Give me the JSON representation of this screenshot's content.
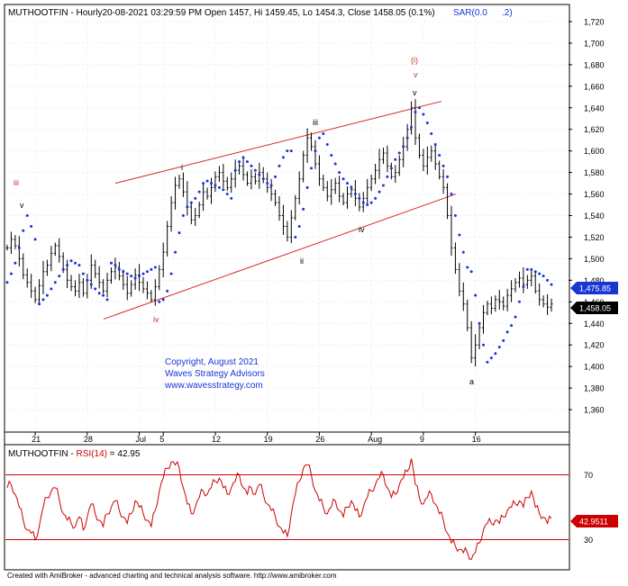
{
  "chart_data": [
    {
      "type": "ohlc",
      "title": "MUTHOOTFIN - Hourly20-08-2021 03:29:59 PM Open 1457, Hi 1459.45, Lo 1454.3, Close 1458.05 (0.1%)",
      "sar_label": "SAR(0.0",
      "sar_label2": ".2)",
      "symbol": "MUTHOOTFIN",
      "interval": "Hourly",
      "timestamp": "20-08-2021 03:29:59 PM",
      "open": 1457,
      "high": 1459.45,
      "low": 1454.3,
      "close": 1458.05,
      "change_pct": "0.1%",
      "ylim": [
        1340,
        1735
      ],
      "yticks": [
        1360,
        1380,
        1400,
        1420,
        1440,
        1460,
        1480,
        1500,
        1520,
        1540,
        1560,
        1580,
        1600,
        1620,
        1640,
        1660,
        1680,
        1700,
        1720
      ],
      "ytick_labels": [
        "1,360",
        "1,380",
        "1,400",
        "1,420",
        "1,440",
        "1,460",
        "1,480",
        "1,500",
        "1,520",
        "1,540",
        "1,560",
        "1,580",
        "1,600",
        "1,620",
        "1,640",
        "1,660",
        "1,680",
        "1,700",
        "1,720"
      ],
      "xtick_labels": [
        "21",
        "28",
        "Jul",
        "5",
        "12",
        "19",
        "26",
        "Aug",
        "9",
        "16"
      ],
      "price_labels": [
        {
          "text": "1,475.85",
          "color": "#1a35d6"
        },
        {
          "text": "1,458.05",
          "color": "#000000"
        }
      ],
      "series": [
        {
          "name": "Close",
          "color": "#000000",
          "values": [
            1510,
            1518,
            1512,
            1500,
            1485,
            1478,
            1470,
            1462,
            1475,
            1488,
            1494,
            1505,
            1512,
            1502,
            1490,
            1480,
            1474,
            1470,
            1478,
            1468,
            1480,
            1494,
            1486,
            1478,
            1470,
            1480,
            1488,
            1492,
            1484,
            1476,
            1468,
            1476,
            1485,
            1478,
            1472,
            1468,
            1462,
            1474,
            1490,
            1506,
            1530,
            1552,
            1568,
            1574,
            1562,
            1548,
            1536,
            1540,
            1550,
            1562,
            1558,
            1566,
            1576,
            1580,
            1572,
            1566,
            1574,
            1582,
            1586,
            1578,
            1570,
            1576,
            1572,
            1580,
            1574,
            1566,
            1560,
            1552,
            1540,
            1530,
            1520,
            1538,
            1556,
            1574,
            1596,
            1612,
            1604,
            1588,
            1574,
            1566,
            1558,
            1564,
            1570,
            1558,
            1552,
            1560,
            1564,
            1556,
            1548,
            1556,
            1566,
            1574,
            1582,
            1592,
            1598,
            1586,
            1576,
            1580,
            1592,
            1604,
            1620,
            1640,
            1612,
            1596,
            1586,
            1594,
            1600,
            1588,
            1576,
            1566,
            1540,
            1510,
            1490,
            1470,
            1458,
            1436,
            1408,
            1420,
            1436,
            1450,
            1458,
            1454,
            1462,
            1460,
            1456,
            1466,
            1472,
            1478,
            1482,
            1476,
            1480,
            1484,
            1470,
            1462,
            1458,
            1455,
            1458
          ]
        },
        {
          "name": "SAR",
          "color": "#1a35d6",
          "values": [
            1478,
            1486,
            1496,
            1510,
            1526,
            1540,
            1530,
            1518,
            1458,
            1462,
            1466,
            1472,
            1478,
            1484,
            1490,
            1494,
            1498,
            1496,
            1494,
            1486,
            1480,
            1476,
            1472,
            1468,
            1466,
            1462,
            1496,
            1494,
            1490,
            1488,
            1486,
            1484,
            1482,
            1484,
            1486,
            1488,
            1490,
            1492,
            1460,
            1462,
            1470,
            1486,
            1506,
            1524,
            1540,
            1548,
            1552,
            1556,
            1562,
            1570,
            1572,
            1570,
            1568,
            1566,
            1564,
            1560,
            1556,
            1582,
            1590,
            1594,
            1590,
            1586,
            1582,
            1578,
            1574,
            1570,
            1568,
            1576,
            1586,
            1594,
            1600,
            1600,
            1520,
            1530,
            1546,
            1566,
            1584,
            1600,
            1612,
            1616,
            1606,
            1596,
            1588,
            1580,
            1574,
            1570,
            1566,
            1560,
            1556,
            1552,
            1550,
            1552,
            1556,
            1562,
            1568,
            1576,
            1584,
            1592,
            1598,
            1604,
            1612,
            1622,
            1636,
            1640,
            1634,
            1626,
            1616,
            1606,
            1596,
            1586,
            1576,
            1560,
            1540,
            1522,
            1506,
            1492,
            1488,
            1466,
            1440,
            1420,
            1404,
            1408,
            1412,
            1418,
            1424,
            1432,
            1438,
            1446,
            1460,
            1474,
            1490,
            1490,
            1488,
            1486,
            1484,
            1480,
            1476
          ]
        }
      ],
      "trendlines": [
        {
          "label": "channel-upper",
          "points": [
            [
              0.0,
              1570
            ],
            [
              1.0,
              1646
            ]
          ]
        },
        {
          "label": "channel-lower",
          "points": [
            [
              0.0,
              1444
            ],
            [
              1.0,
              1560
            ]
          ]
        }
      ],
      "annotations": [
        {
          "text": "iii",
          "color": "#c0392b"
        },
        {
          "text": "v",
          "color": "#000000"
        },
        {
          "text": "iv",
          "color": "#c0392b"
        },
        {
          "text": "i",
          "color": "#000000"
        },
        {
          "text": "ii",
          "color": "#000000"
        },
        {
          "text": "iii",
          "color": "#000000"
        },
        {
          "text": "iv",
          "color": "#000000"
        },
        {
          "text": "(i)",
          "color": "#c0392b"
        },
        {
          "text": "v",
          "color": "#c0392b"
        },
        {
          "text": "v",
          "color": "#000000"
        },
        {
          "text": "a",
          "color": "#000000"
        }
      ],
      "copyright": [
        "Copyright, August 2021",
        "Waves Strategy Advisors",
        "www.wavesstrategy.com"
      ]
    },
    {
      "type": "line",
      "title": "MUTHOOTFIN - RSI(14) = 42.95",
      "title_prefix": "MUTHOOTFIN - ",
      "title_rsi": "RSI(14)",
      "title_suffix": " = 42.95",
      "ylim": [
        12,
        88
      ],
      "ytick_labels": [
        "70",
        "30"
      ],
      "yticks": [
        70,
        30
      ],
      "levels": [
        70,
        30
      ],
      "last_value_label": "42.9511",
      "series": [
        {
          "name": "RSI(14)",
          "color": "#cc0000",
          "values": [
            62,
            64,
            58,
            50,
            42,
            36,
            34,
            30,
            38,
            50,
            56,
            60,
            62,
            55,
            46,
            42,
            40,
            38,
            44,
            36,
            44,
            52,
            46,
            42,
            38,
            46,
            50,
            54,
            48,
            44,
            40,
            46,
            54,
            50,
            46,
            42,
            38,
            48,
            60,
            68,
            74,
            78,
            76,
            74,
            62,
            52,
            46,
            50,
            56,
            60,
            58,
            62,
            66,
            68,
            62,
            58,
            62,
            66,
            70,
            62,
            58,
            62,
            58,
            64,
            58,
            52,
            48,
            44,
            38,
            34,
            32,
            46,
            58,
            66,
            74,
            76,
            70,
            60,
            54,
            50,
            46,
            50,
            54,
            48,
            44,
            50,
            54,
            48,
            44,
            50,
            56,
            60,
            64,
            68,
            70,
            62,
            56,
            58,
            64,
            68,
            72,
            80,
            64,
            56,
            52,
            56,
            58,
            52,
            46,
            42,
            34,
            28,
            26,
            24,
            22,
            22,
            18,
            22,
            28,
            36,
            40,
            40,
            42,
            40,
            44,
            48,
            50,
            52,
            54,
            50,
            56,
            60,
            50,
            46,
            44,
            40,
            43
          ]
        }
      ]
    }
  ],
  "footer": "Created with AmiBroker - advanced charting and technical analysis software. http://www.amibroker.com"
}
